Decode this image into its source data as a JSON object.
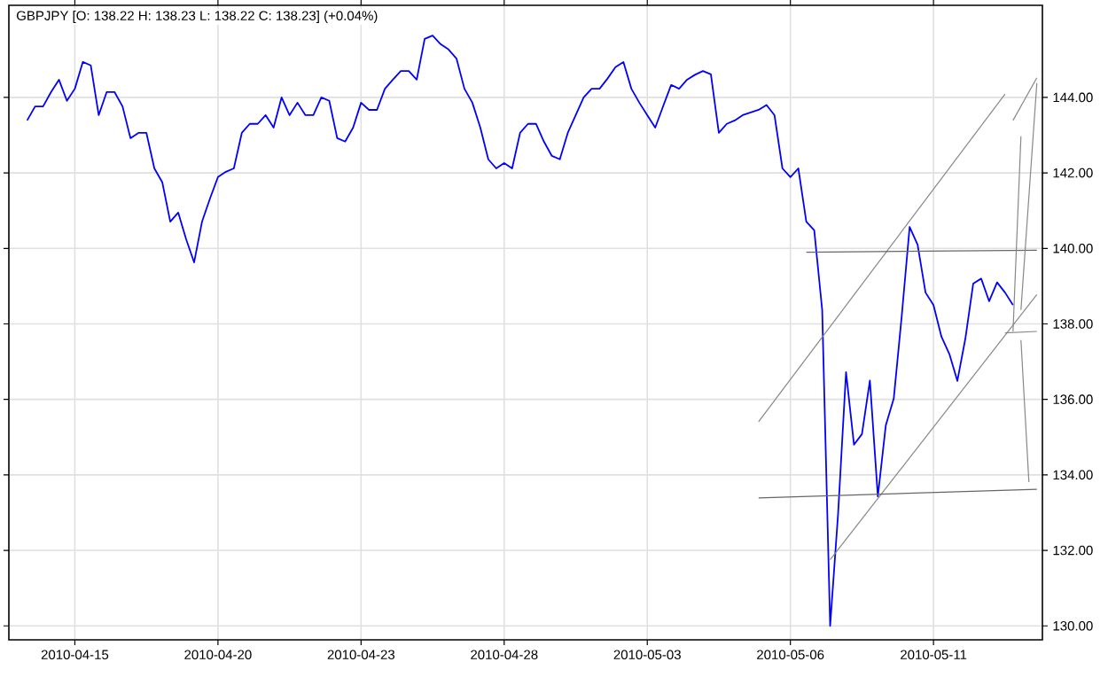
{
  "chart_data": {
    "type": "line",
    "title": "GBPJPY [O: 138.22  H: 138.23  L: 138.22  C: 138.23] (+0.04%)",
    "categories": [
      null,
      null,
      null,
      null,
      null,
      null,
      "2010-04-15",
      null,
      null,
      null,
      null,
      null,
      null,
      null,
      null,
      null,
      null,
      null,
      null,
      null,
      null,
      null,
      null,
      null,
      "2010-04-20",
      null,
      null,
      null,
      null,
      null,
      null,
      null,
      null,
      null,
      null,
      null,
      null,
      null,
      null,
      null,
      null,
      null,
      "2010-04-23",
      null,
      null,
      null,
      null,
      null,
      null,
      null,
      null,
      null,
      null,
      null,
      null,
      null,
      null,
      null,
      null,
      null,
      "2010-04-28",
      null,
      null,
      null,
      null,
      null,
      null,
      null,
      null,
      null,
      null,
      null,
      null,
      null,
      null,
      null,
      null,
      null,
      "2010-05-03",
      null,
      null,
      null,
      null,
      null,
      null,
      null,
      null,
      null,
      null,
      null,
      null,
      null,
      null,
      null,
      null,
      null,
      "2010-05-06",
      null,
      null,
      null,
      null,
      null,
      null,
      null,
      null,
      null,
      null,
      null,
      null,
      null,
      null,
      null,
      null,
      null,
      "2010-05-11",
      null,
      null,
      null,
      null,
      null,
      null,
      null,
      null,
      null,
      null,
      null,
      null,
      null
    ],
    "ylim": [
      129.63,
      146.44
    ],
    "yticks": [
      {
        "value": 130,
        "label": "130.00"
      },
      {
        "value": 132,
        "label": "132.00"
      },
      {
        "value": 134,
        "label": "134.00"
      },
      {
        "value": 136,
        "label": "136.00"
      },
      {
        "value": 138,
        "label": "138.00"
      },
      {
        "value": 140,
        "label": "140.00"
      },
      {
        "value": 142,
        "label": "142.00"
      },
      {
        "value": 144,
        "label": "144.00"
      }
    ],
    "grid": true,
    "series": [
      {
        "color": "#0000ff",
        "values": [
          143.39,
          143.76,
          143.76,
          144.14,
          144.47,
          143.91,
          144.23,
          144.94,
          144.85,
          143.53,
          144.14,
          144.14,
          143.76,
          142.92,
          143.06,
          143.06,
          142.12,
          141.75,
          140.71,
          140.95,
          140.24,
          139.63,
          140.71,
          141.32,
          141.89,
          142.03,
          142.12,
          143.06,
          143.3,
          143.3,
          143.53,
          143.2,
          144.0,
          143.53,
          143.86,
          143.53,
          143.53,
          144.0,
          143.91,
          142.92,
          142.83,
          143.2,
          143.86,
          143.67,
          143.67,
          144.23,
          144.47,
          144.7,
          144.7,
          144.47,
          145.55,
          145.64,
          145.41,
          145.27,
          145.03,
          144.23,
          143.86,
          143.2,
          142.36,
          142.12,
          142.26,
          142.12,
          143.06,
          143.3,
          143.3,
          142.83,
          142.45,
          142.36,
          143.06,
          143.53,
          144.0,
          144.23,
          144.23,
          144.5,
          144.8,
          144.94,
          144.23,
          143.86,
          143.53,
          143.2,
          143.77,
          144.33,
          144.23,
          144.47,
          144.6,
          144.7,
          144.61,
          143.06,
          143.3,
          143.39,
          143.53,
          143.6,
          143.67,
          143.8,
          143.53,
          142.12,
          141.89,
          142.12,
          140.71,
          140.48,
          138.37,
          130.0,
          132.97,
          136.72,
          134.8,
          135.08,
          136.5,
          133.43,
          135.31,
          136.02,
          138.2,
          140.57,
          140.1,
          138.83,
          138.5,
          137.66,
          137.2,
          136.49,
          137.6,
          139.07,
          139.2,
          138.6,
          139.1,
          138.83,
          138.5,
          null,
          null,
          null
        ]
      },
      {
        "color": "#888888",
        "values": [
          null,
          null,
          null,
          null,
          null,
          null,
          null,
          null,
          null,
          null,
          null,
          null,
          null,
          null,
          null,
          null,
          null,
          null,
          null,
          null,
          null,
          null,
          null,
          null,
          null,
          null,
          null,
          null,
          null,
          null,
          null,
          null,
          null,
          null,
          null,
          null,
          null,
          null,
          null,
          null,
          null,
          null,
          null,
          null,
          null,
          null,
          null,
          null,
          null,
          null,
          null,
          null,
          null,
          null,
          null,
          null,
          null,
          null,
          null,
          null,
          null,
          null,
          null,
          null,
          null,
          null,
          null,
          null,
          null,
          null,
          null,
          null,
          null,
          null,
          null,
          null,
          null,
          null,
          null,
          null,
          null,
          null,
          null,
          null,
          null,
          null,
          null,
          null,
          null,
          null,
          null,
          null,
          135.41,
          null,
          null,
          null,
          null,
          null,
          null,
          null,
          null,
          null,
          null,
          null,
          null,
          null,
          null,
          null,
          null,
          null,
          null,
          null,
          null,
          null,
          null,
          null,
          null,
          null,
          null,
          null,
          null,
          null,
          null,
          144.09,
          null,
          null,
          null,
          null
        ]
      },
      {
        "color": "#888888",
        "values": [
          null,
          null,
          null,
          null,
          null,
          null,
          null,
          null,
          null,
          null,
          null,
          null,
          null,
          null,
          null,
          null,
          null,
          null,
          null,
          null,
          null,
          null,
          null,
          null,
          null,
          null,
          null,
          null,
          null,
          null,
          null,
          null,
          null,
          null,
          null,
          null,
          null,
          null,
          null,
          null,
          null,
          null,
          null,
          null,
          null,
          null,
          null,
          null,
          null,
          null,
          null,
          null,
          null,
          null,
          null,
          null,
          null,
          null,
          null,
          null,
          null,
          null,
          null,
          null,
          null,
          null,
          null,
          null,
          null,
          null,
          null,
          null,
          null,
          null,
          null,
          null,
          null,
          null,
          null,
          null,
          null,
          null,
          null,
          null,
          null,
          null,
          null,
          null,
          null,
          null,
          null,
          null,
          null,
          null,
          null,
          null,
          null,
          null,
          null,
          null,
          null,
          131.75,
          null,
          null,
          null,
          null,
          null,
          null,
          null,
          null,
          null,
          null,
          null,
          null,
          null,
          null,
          null,
          null,
          null,
          null,
          null,
          null,
          null,
          null,
          null,
          null,
          null,
          138.78
        ]
      },
      {
        "color": "#666666",
        "values": [
          null,
          null,
          null,
          null,
          null,
          null,
          null,
          null,
          null,
          null,
          null,
          null,
          null,
          null,
          null,
          null,
          null,
          null,
          null,
          null,
          null,
          null,
          null,
          null,
          null,
          null,
          null,
          null,
          null,
          null,
          null,
          null,
          null,
          null,
          null,
          null,
          null,
          null,
          null,
          null,
          null,
          null,
          null,
          null,
          null,
          null,
          null,
          null,
          null,
          null,
          null,
          null,
          null,
          null,
          null,
          null,
          null,
          null,
          null,
          null,
          null,
          null,
          null,
          null,
          null,
          null,
          null,
          null,
          null,
          null,
          null,
          null,
          null,
          null,
          null,
          null,
          null,
          null,
          null,
          null,
          null,
          null,
          null,
          null,
          null,
          null,
          null,
          null,
          null,
          null,
          null,
          null,
          null,
          null,
          null,
          null,
          null,
          null,
          139.9,
          null,
          null,
          null,
          null,
          null,
          null,
          null,
          null,
          null,
          null,
          null,
          null,
          null,
          null,
          null,
          null,
          null,
          null,
          null,
          null,
          null,
          null,
          null,
          null,
          null,
          null,
          null,
          null,
          139.95
        ]
      },
      {
        "color": "#666666",
        "values": [
          null,
          null,
          null,
          null,
          null,
          null,
          null,
          null,
          null,
          null,
          null,
          null,
          null,
          null,
          null,
          null,
          null,
          null,
          null,
          null,
          null,
          null,
          null,
          null,
          null,
          null,
          null,
          null,
          null,
          null,
          null,
          null,
          null,
          null,
          null,
          null,
          null,
          null,
          null,
          null,
          null,
          null,
          null,
          null,
          null,
          null,
          null,
          null,
          null,
          null,
          null,
          null,
          null,
          null,
          null,
          null,
          null,
          null,
          null,
          null,
          null,
          null,
          null,
          null,
          null,
          null,
          null,
          null,
          null,
          null,
          null,
          null,
          null,
          null,
          null,
          null,
          null,
          null,
          null,
          null,
          null,
          null,
          null,
          null,
          null,
          null,
          null,
          null,
          null,
          null,
          null,
          null,
          133.39,
          null,
          null,
          null,
          null,
          null,
          null,
          null,
          null,
          null,
          null,
          null,
          null,
          null,
          null,
          null,
          null,
          null,
          null,
          null,
          null,
          null,
          null,
          null,
          null,
          null,
          null,
          null,
          null,
          null,
          null,
          null,
          null,
          null,
          null,
          133.62
        ]
      },
      {
        "color": "#888888",
        "values": [
          null,
          null,
          null,
          null,
          null,
          null,
          null,
          null,
          null,
          null,
          null,
          null,
          null,
          null,
          null,
          null,
          null,
          null,
          null,
          null,
          null,
          null,
          null,
          null,
          null,
          null,
          null,
          null,
          null,
          null,
          null,
          null,
          null,
          null,
          null,
          null,
          null,
          null,
          null,
          null,
          null,
          null,
          null,
          null,
          null,
          null,
          null,
          null,
          null,
          null,
          null,
          null,
          null,
          null,
          null,
          null,
          null,
          null,
          null,
          null,
          null,
          null,
          null,
          null,
          null,
          null,
          null,
          null,
          null,
          null,
          null,
          null,
          null,
          null,
          null,
          null,
          null,
          null,
          null,
          null,
          null,
          null,
          null,
          null,
          null,
          null,
          null,
          null,
          null,
          null,
          null,
          null,
          null,
          null,
          null,
          null,
          null,
          null,
          null,
          null,
          null,
          null,
          null,
          null,
          null,
          null,
          null,
          null,
          null,
          null,
          null,
          null,
          null,
          null,
          null,
          null,
          null,
          null,
          null,
          null,
          null,
          null,
          null,
          null,
          143.39,
          null,
          null,
          144.52
        ]
      },
      {
        "color": "#888888",
        "values": [
          null,
          null,
          null,
          null,
          null,
          null,
          null,
          null,
          null,
          null,
          null,
          null,
          null,
          null,
          null,
          null,
          null,
          null,
          null,
          null,
          null,
          null,
          null,
          null,
          null,
          null,
          null,
          null,
          null,
          null,
          null,
          null,
          null,
          null,
          null,
          null,
          null,
          null,
          null,
          null,
          null,
          null,
          null,
          null,
          null,
          null,
          null,
          null,
          null,
          null,
          null,
          null,
          null,
          null,
          null,
          null,
          null,
          null,
          null,
          null,
          null,
          null,
          null,
          null,
          null,
          null,
          null,
          null,
          null,
          null,
          null,
          null,
          null,
          null,
          null,
          null,
          null,
          null,
          null,
          null,
          null,
          null,
          null,
          null,
          null,
          null,
          null,
          null,
          null,
          null,
          null,
          null,
          null,
          null,
          null,
          null,
          null,
          null,
          null,
          null,
          null,
          null,
          null,
          null,
          null,
          null,
          null,
          null,
          null,
          null,
          null,
          null,
          null,
          null,
          null,
          null,
          null,
          null,
          null,
          null,
          null,
          null,
          null,
          null,
          137.8,
          142.97,
          null,
          null
        ]
      },
      {
        "color": "#888888",
        "values": [
          null,
          null,
          null,
          null,
          null,
          null,
          null,
          null,
          null,
          null,
          null,
          null,
          null,
          null,
          null,
          null,
          null,
          null,
          null,
          null,
          null,
          null,
          null,
          null,
          null,
          null,
          null,
          null,
          null,
          null,
          null,
          null,
          null,
          null,
          null,
          null,
          null,
          null,
          null,
          null,
          null,
          null,
          null,
          null,
          null,
          null,
          null,
          null,
          null,
          null,
          null,
          null,
          null,
          null,
          null,
          null,
          null,
          null,
          null,
          null,
          null,
          null,
          null,
          null,
          null,
          null,
          null,
          null,
          null,
          null,
          null,
          null,
          null,
          null,
          null,
          null,
          null,
          null,
          null,
          null,
          null,
          null,
          null,
          null,
          null,
          null,
          null,
          null,
          null,
          null,
          null,
          null,
          null,
          null,
          null,
          null,
          null,
          null,
          null,
          null,
          null,
          null,
          null,
          null,
          null,
          null,
          null,
          null,
          null,
          null,
          null,
          null,
          null,
          null,
          null,
          null,
          null,
          null,
          null,
          null,
          null,
          null,
          null,
          null,
          null,
          138.37,
          null,
          144.38
        ]
      },
      {
        "color": "#888888",
        "values": [
          null,
          null,
          null,
          null,
          null,
          null,
          null,
          null,
          null,
          null,
          null,
          null,
          null,
          null,
          null,
          null,
          null,
          null,
          null,
          null,
          null,
          null,
          null,
          null,
          null,
          null,
          null,
          null,
          null,
          null,
          null,
          null,
          null,
          null,
          null,
          null,
          null,
          null,
          null,
          null,
          null,
          null,
          null,
          null,
          null,
          null,
          null,
          null,
          null,
          null,
          null,
          null,
          null,
          null,
          null,
          null,
          null,
          null,
          null,
          null,
          null,
          null,
          null,
          null,
          null,
          null,
          null,
          null,
          null,
          null,
          null,
          null,
          null,
          null,
          null,
          null,
          null,
          null,
          null,
          null,
          null,
          null,
          null,
          null,
          null,
          null,
          null,
          null,
          null,
          null,
          null,
          null,
          null,
          null,
          null,
          null,
          null,
          null,
          null,
          null,
          null,
          null,
          null,
          null,
          null,
          null,
          null,
          null,
          null,
          null,
          null,
          null,
          null,
          null,
          null,
          null,
          null,
          null,
          null,
          null,
          null,
          null,
          null,
          null,
          null,
          137.57,
          133.81,
          null
        ]
      },
      {
        "color": "#888888",
        "values": [
          null,
          null,
          null,
          null,
          null,
          null,
          null,
          null,
          null,
          null,
          null,
          null,
          null,
          null,
          null,
          null,
          null,
          null,
          null,
          null,
          null,
          null,
          null,
          null,
          null,
          null,
          null,
          null,
          null,
          null,
          null,
          null,
          null,
          null,
          null,
          null,
          null,
          null,
          null,
          null,
          null,
          null,
          null,
          null,
          null,
          null,
          null,
          null,
          null,
          null,
          null,
          null,
          null,
          null,
          null,
          null,
          null,
          null,
          null,
          null,
          null,
          null,
          null,
          null,
          null,
          null,
          null,
          null,
          null,
          null,
          null,
          null,
          null,
          null,
          null,
          null,
          null,
          null,
          null,
          null,
          null,
          null,
          null,
          null,
          null,
          null,
          null,
          null,
          null,
          null,
          null,
          null,
          null,
          null,
          null,
          null,
          null,
          null,
          null,
          null,
          null,
          null,
          null,
          null,
          null,
          null,
          null,
          null,
          null,
          null,
          null,
          null,
          null,
          null,
          null,
          null,
          null,
          null,
          null,
          null,
          null,
          null,
          null,
          137.76,
          null,
          null,
          null,
          137.8
        ]
      }
    ]
  }
}
